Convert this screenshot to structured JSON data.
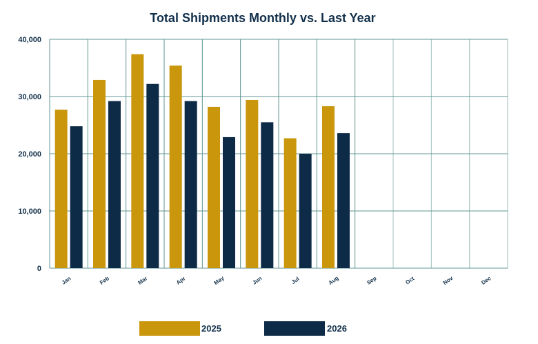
{
  "chart_data": {
    "type": "bar",
    "title": "Total Shipments Monthly vs. Last Year",
    "categories": [
      "Jan",
      "Feb",
      "Mar",
      "Apr",
      "May",
      "Jun",
      "Jul",
      "Aug",
      "Sep",
      "Oct",
      "Nov",
      "Dec"
    ],
    "series": [
      {
        "name": "2025",
        "color": "#c9960c",
        "values": [
          27700,
          32900,
          37400,
          35400,
          28200,
          29400,
          22700,
          28300,
          null,
          null,
          null,
          null
        ]
      },
      {
        "name": "2026",
        "color": "#0d2a47",
        "values": [
          24800,
          29200,
          32200,
          29200,
          22900,
          25500,
          20000,
          23600,
          null,
          null,
          null,
          null
        ]
      }
    ],
    "ylim": [
      0,
      40000
    ],
    "yticks": [
      "0",
      "10,000",
      "20,000",
      "30,000",
      "40,000"
    ],
    "ytick_values": [
      0,
      10000,
      20000,
      30000,
      40000
    ],
    "grid": true,
    "grid_color": "#5f9490",
    "legend_position": "bottom"
  }
}
